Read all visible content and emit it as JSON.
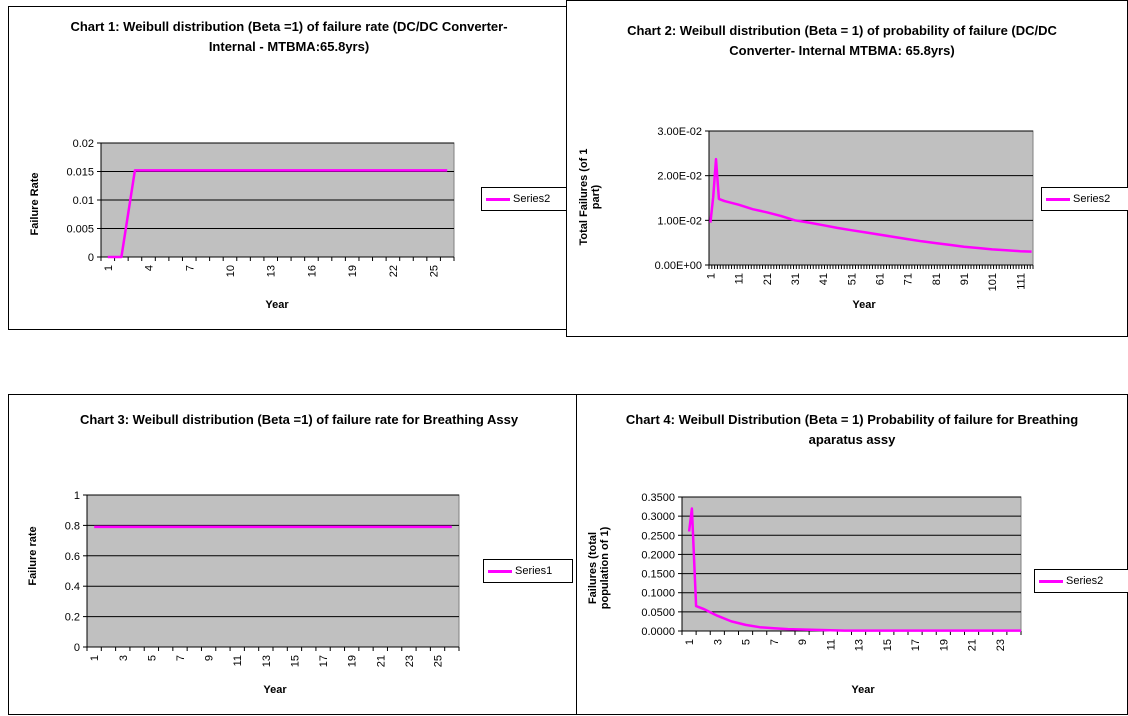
{
  "chart_data": [
    {
      "type": "line",
      "title": "Chart 1: Weibull distribution (Beta =1) of failure rate (DC/DC Converter- Internal - MTBMA:65.8yrs)",
      "ylabel": "Failure Rate",
      "xlabel": "Year",
      "ylim": [
        0,
        0.02
      ],
      "yticks": [
        "0",
        "0.005",
        "0.01",
        "0.015",
        "0.02"
      ],
      "xtick_labels": [
        "1",
        "4",
        "7",
        "10",
        "13",
        "16",
        "19",
        "22",
        "25"
      ],
      "grid": true,
      "legend_position": "right",
      "line_color": "#ff00ff",
      "series": [
        {
          "name": "Series2",
          "x": [
            1,
            2,
            3,
            4,
            5,
            6,
            7,
            8,
            9,
            10,
            11,
            12,
            13,
            14,
            15,
            16,
            17,
            18,
            19,
            20,
            21,
            22,
            23,
            24,
            25,
            26
          ],
          "values": [
            0,
            0,
            0.0152,
            0.0152,
            0.0152,
            0.0152,
            0.0152,
            0.0152,
            0.0152,
            0.0152,
            0.0152,
            0.0152,
            0.0152,
            0.0152,
            0.0152,
            0.0152,
            0.0152,
            0.0152,
            0.0152,
            0.0152,
            0.0152,
            0.0152,
            0.0152,
            0.0152,
            0.0152,
            0.0152
          ]
        }
      ]
    },
    {
      "type": "line",
      "title": "Chart 2: Weibull distribution (Beta = 1) of probability of failure (DC/DC Converter- Internal MTBMA: 65.8yrs)",
      "ylabel": "Total Failures (of 1 part)",
      "xlabel": "Year",
      "ylim": [
        0,
        0.03
      ],
      "yticks": [
        "0.00E+00",
        "1.00E-02",
        "2.00E-02",
        "3.00E-02"
      ],
      "xtick_labels": [
        "1",
        "11",
        "21",
        "31",
        "41",
        "51",
        "61",
        "71",
        "81",
        "91",
        "101",
        "111"
      ],
      "xrange": [
        1,
        115
      ],
      "grid": true,
      "legend_position": "right",
      "line_color": "#ff00ff",
      "series": [
        {
          "name": "Series2",
          "x": [
            1,
            2,
            3,
            4,
            6,
            11,
            16,
            21,
            26,
            31,
            36,
            41,
            46,
            51,
            56,
            61,
            66,
            71,
            76,
            81,
            86,
            91,
            96,
            101,
            106,
            111,
            115
          ],
          "values": [
            0.0095,
            0.0152,
            0.0237,
            0.0148,
            0.0143,
            0.0135,
            0.0125,
            0.0118,
            0.011,
            0.01,
            0.0095,
            0.0089,
            0.0083,
            0.0078,
            0.0073,
            0.0068,
            0.0063,
            0.0058,
            0.0053,
            0.0049,
            0.0045,
            0.0041,
            0.0038,
            0.0035,
            0.0033,
            0.0031,
            0.003
          ]
        }
      ]
    },
    {
      "type": "line",
      "title": "Chart 3: Weibull distribution (Beta =1) of failure rate for Breathing Assy",
      "ylabel": "Failure rate",
      "xlabel": "Year",
      "ylim": [
        0,
        1
      ],
      "yticks": [
        "0",
        "0.2",
        "0.4",
        "0.6",
        "0.8",
        "1"
      ],
      "xtick_labels": [
        "1",
        "3",
        "5",
        "7",
        "9",
        "11",
        "13",
        "15",
        "17",
        "19",
        "21",
        "23",
        "25"
      ],
      "grid": true,
      "legend_position": "right",
      "line_color": "#ff00ff",
      "series": [
        {
          "name": "Series1",
          "x": [
            1,
            2,
            3,
            4,
            5,
            6,
            7,
            8,
            9,
            10,
            11,
            12,
            13,
            14,
            15,
            16,
            17,
            18,
            19,
            20,
            21,
            22,
            23,
            24,
            25,
            26
          ],
          "values": [
            0.79,
            0.79,
            0.79,
            0.79,
            0.79,
            0.79,
            0.79,
            0.79,
            0.79,
            0.79,
            0.79,
            0.79,
            0.79,
            0.79,
            0.79,
            0.79,
            0.79,
            0.79,
            0.79,
            0.79,
            0.79,
            0.79,
            0.79,
            0.79,
            0.79,
            0.79
          ]
        }
      ]
    },
    {
      "type": "line",
      "title": "Chart 4: Weibull Distribution (Beta = 1) Probability of failure for Breathing aparatus assy",
      "ylabel": "Failures (total population of 1)",
      "xlabel": "Year",
      "ylim": [
        0,
        0.35
      ],
      "yticks": [
        "0.0000",
        "0.0500",
        "0.1000",
        "0.1500",
        "0.2000",
        "0.2500",
        "0.3000",
        "0.3500"
      ],
      "xtick_labels": [
        "1",
        "3",
        "5",
        "7",
        "9",
        "11",
        "13",
        "15",
        "17",
        "19",
        "21",
        "23"
      ],
      "xrange": [
        1,
        24.5
      ],
      "grid": true,
      "legend_position": "right",
      "line_color": "#ff00ff",
      "series": [
        {
          "name": "Series2",
          "x": [
            1,
            1.2,
            1.5,
            2,
            3,
            4,
            5,
            6,
            7,
            8,
            9,
            10,
            11,
            12,
            13,
            14,
            15,
            16,
            17,
            18,
            19,
            20,
            21,
            22,
            23,
            24.5
          ],
          "values": [
            0.26,
            0.32,
            0.065,
            0.058,
            0.04,
            0.025,
            0.016,
            0.01,
            0.007,
            0.005,
            0.004,
            0.003,
            0.002,
            0.001,
            0.001,
            0.001,
            0.001,
            0.001,
            0.001,
            0.001,
            0.001,
            0.001,
            0.001,
            0.001,
            0.001,
            0.001
          ]
        }
      ]
    }
  ]
}
